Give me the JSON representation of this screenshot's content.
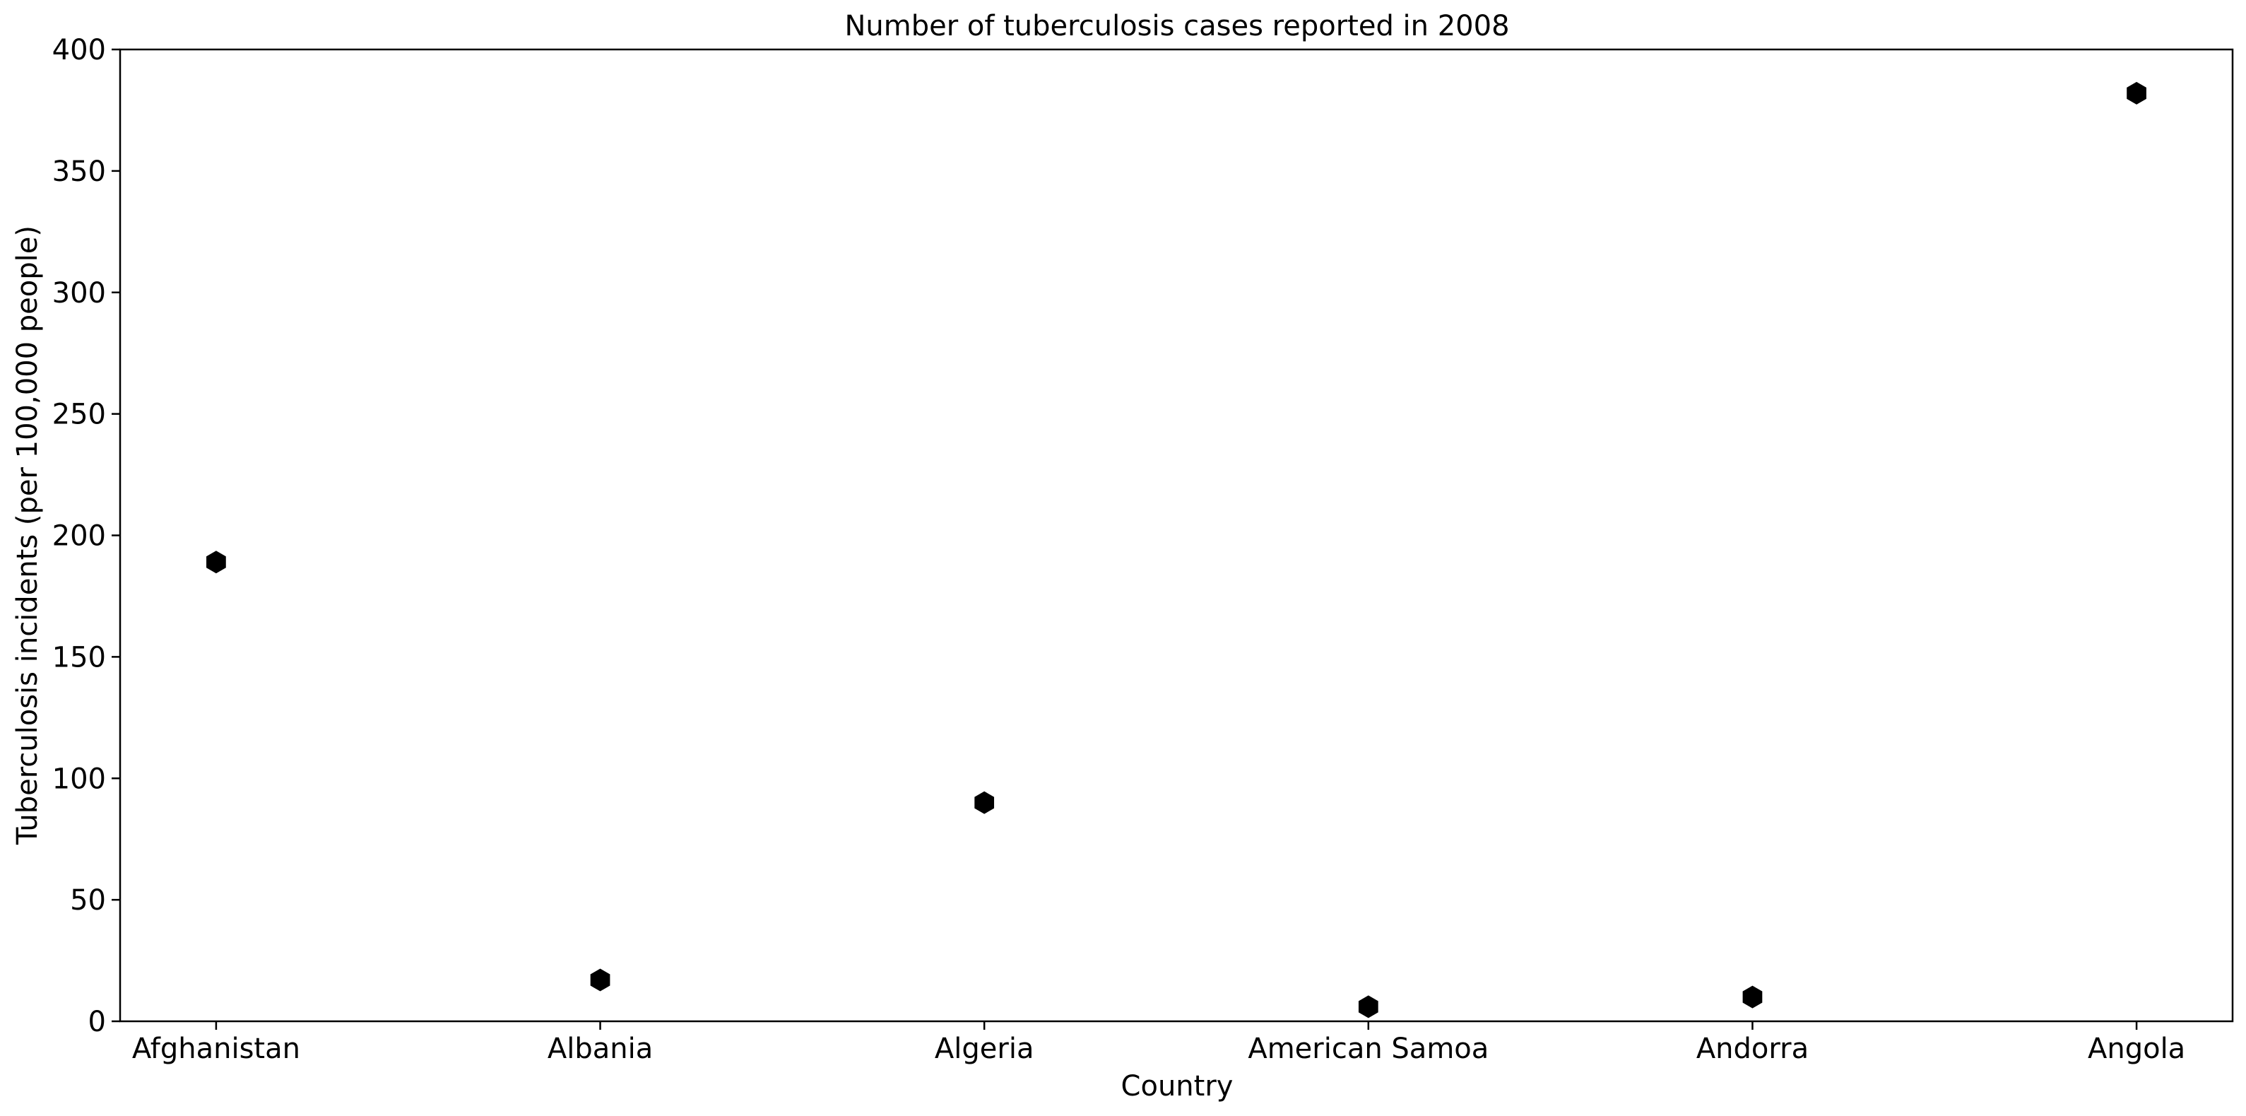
{
  "chart_data": {
    "type": "scatter",
    "title": "Number of tuberculosis cases reported in 2008",
    "xlabel": "Country",
    "ylabel": "Tuberculosis incidents (per 100,000 people)",
    "categories": [
      "Afghanistan",
      "Albania",
      "Algeria",
      "American Samoa",
      "Andorra",
      "Angola"
    ],
    "series": [
      {
        "values": [
          189,
          17,
          90,
          6,
          10,
          382
        ],
        "marker": "hexagon",
        "color": "#000000"
      }
    ],
    "ylim": [
      0,
      400
    ],
    "yticks": [
      0,
      50,
      100,
      150,
      200,
      250,
      300,
      350,
      400
    ],
    "grid": false,
    "legend": "none"
  }
}
